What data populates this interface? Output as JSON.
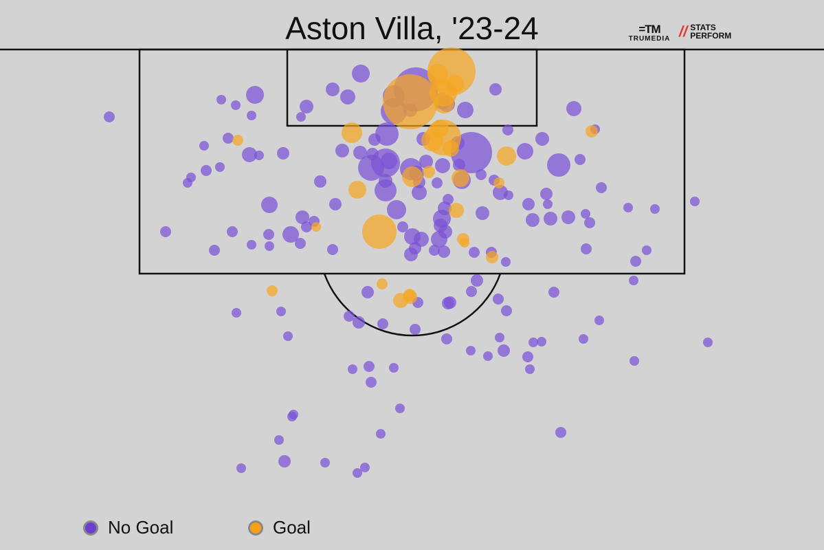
{
  "title": "Aston Villa, '23-24",
  "logos": {
    "trumedia_mark": "=TM",
    "trumedia": "TRUMEDIA",
    "stats": "STATS",
    "perform": "PERFORM"
  },
  "legend": [
    {
      "label": "No Goal",
      "color": "#6a3fd0"
    },
    {
      "label": "Goal",
      "color": "#f7a11a"
    }
  ],
  "colors": {
    "no_goal": "#7a52d6",
    "goal": "#f5a623",
    "background": "#d3d3d3",
    "lines": "#111111"
  },
  "chart_data": {
    "type": "scatter",
    "title": "Aston Villa, '23-24",
    "description_size": "bubble size = chance quality",
    "series": [
      {
        "name": "No Goal",
        "color": "#7a52d6",
        "points": [
          [
            159,
            170,
            8
          ],
          [
            322,
            145,
            7
          ],
          [
            343,
            153,
            7
          ],
          [
            371,
            138,
            13
          ],
          [
            366,
            168,
            7
          ],
          [
            297,
            212,
            7
          ],
          [
            332,
            201,
            8
          ],
          [
            363,
            225,
            11
          ],
          [
            377,
            226,
            7
          ],
          [
            412,
            223,
            9
          ],
          [
            300,
            248,
            8
          ],
          [
            320,
            243,
            7
          ],
          [
            278,
            258,
            7
          ],
          [
            273,
            266,
            7
          ],
          [
            241,
            337,
            8
          ],
          [
            312,
            364,
            8
          ],
          [
            338,
            337,
            8
          ],
          [
            366,
            356,
            7
          ],
          [
            391,
            341,
            8
          ],
          [
            392,
            358,
            7
          ],
          [
            392,
            298,
            12
          ],
          [
            423,
            341,
            12
          ],
          [
            437,
            354,
            8
          ],
          [
            440,
            316,
            10
          ],
          [
            446,
            330,
            8
          ],
          [
            457,
            322,
            8
          ],
          [
            484,
            363,
            8
          ],
          [
            466,
            264,
            9
          ],
          [
            488,
            297,
            9
          ],
          [
            438,
            170,
            7
          ],
          [
            446,
            155,
            10
          ],
          [
            484,
            130,
            10
          ],
          [
            506,
            141,
            11
          ],
          [
            525,
            107,
            13
          ],
          [
            573,
            140,
            16
          ],
          [
            605,
            130,
            32
          ],
          [
            573,
            162,
            19
          ],
          [
            597,
            160,
            10
          ],
          [
            677,
            160,
            12
          ],
          [
            721,
            130,
            9
          ],
          [
            739,
            189,
            8
          ],
          [
            789,
            202,
            10
          ],
          [
            764,
            220,
            12
          ],
          [
            835,
            158,
            11
          ],
          [
            866,
            188,
            7
          ],
          [
            813,
            240,
            17
          ],
          [
            844,
            232,
            8
          ],
          [
            875,
            273,
            8
          ],
          [
            728,
            280,
            11
          ],
          [
            740,
            284,
            7
          ],
          [
            702,
            310,
            10
          ],
          [
            769,
            297,
            9
          ],
          [
            795,
            282,
            9
          ],
          [
            797,
            297,
            7
          ],
          [
            775,
            320,
            10
          ],
          [
            801,
            318,
            10
          ],
          [
            827,
            316,
            10
          ],
          [
            852,
            311,
            7
          ],
          [
            858,
            324,
            8
          ],
          [
            853,
            362,
            8
          ],
          [
            914,
            302,
            7
          ],
          [
            953,
            304,
            7
          ],
          [
            1011,
            293,
            7
          ],
          [
            941,
            364,
            7
          ],
          [
            925,
            380,
            8
          ],
          [
            922,
            408,
            7
          ],
          [
            872,
            466,
            7
          ],
          [
            849,
            493,
            7
          ],
          [
            923,
            525,
            7
          ],
          [
            1030,
            498,
            7
          ],
          [
            816,
            629,
            8
          ],
          [
            806,
            425,
            8
          ],
          [
            725,
            435,
            8
          ],
          [
            737,
            452,
            8
          ],
          [
            694,
            408,
            9
          ],
          [
            686,
            424,
            8
          ],
          [
            655,
            440,
            9
          ],
          [
            652,
            441,
            9
          ],
          [
            727,
            491,
            7
          ],
          [
            788,
            497,
            7
          ],
          [
            776,
            498,
            7
          ],
          [
            768,
            519,
            8
          ],
          [
            771,
            537,
            7
          ],
          [
            733,
            510,
            9
          ],
          [
            710,
            518,
            7
          ],
          [
            685,
            510,
            7
          ],
          [
            650,
            493,
            8
          ],
          [
            604,
            479,
            8
          ],
          [
            608,
            440,
            8
          ],
          [
            557,
            471,
            8
          ],
          [
            522,
            469,
            9
          ],
          [
            508,
            460,
            8
          ],
          [
            535,
            425,
            9
          ],
          [
            513,
            537,
            7
          ],
          [
            537,
            533,
            8
          ],
          [
            540,
            556,
            8
          ],
          [
            573,
            535,
            7
          ],
          [
            582,
            594,
            7
          ],
          [
            554,
            631,
            7
          ],
          [
            520,
            688,
            7
          ],
          [
            531,
            680,
            7
          ],
          [
            473,
            673,
            7
          ],
          [
            414,
            671,
            9
          ],
          [
            351,
            681,
            7
          ],
          [
            406,
            640,
            7
          ],
          [
            427,
            603,
            7
          ],
          [
            425,
            606,
            7
          ],
          [
            419,
            489,
            7
          ],
          [
            409,
            453,
            7
          ],
          [
            344,
            455,
            7
          ],
          [
            736,
            381,
            7
          ],
          [
            715,
            367,
            8
          ],
          [
            690,
            367,
            8
          ],
          [
            646,
            366,
            9
          ],
          [
            632,
            364,
            8
          ],
          [
            598,
            370,
            10
          ],
          [
            604,
            361,
            9
          ],
          [
            600,
            344,
            12
          ],
          [
            613,
            348,
            11
          ],
          [
            639,
            348,
            12
          ],
          [
            648,
            337,
            10
          ],
          [
            643,
            318,
            13
          ],
          [
            641,
            328,
            10
          ],
          [
            647,
            303,
            10
          ],
          [
            652,
            290,
            8
          ],
          [
            586,
            330,
            8
          ],
          [
            577,
            305,
            14
          ],
          [
            561,
            277,
            16
          ],
          [
            561,
            263,
            10
          ],
          [
            540,
            244,
            19
          ],
          [
            561,
            237,
            21
          ],
          [
            566,
            234,
            12
          ],
          [
            524,
            222,
            10
          ],
          [
            498,
            219,
            10
          ],
          [
            542,
            224,
            9
          ],
          [
            545,
            203,
            9
          ],
          [
            563,
            195,
            17
          ],
          [
            598,
            246,
            16
          ],
          [
            606,
            252,
            11
          ],
          [
            620,
            235,
            10
          ],
          [
            610,
            280,
            11
          ],
          [
            610,
            265,
            9
          ],
          [
            636,
            266,
            8
          ],
          [
            644,
            241,
            11
          ],
          [
            616,
            202,
            10
          ],
          [
            666,
            208,
            10
          ],
          [
            686,
            222,
            30
          ],
          [
            672,
            262,
            13
          ],
          [
            700,
            254,
            8
          ],
          [
            719,
            262,
            8
          ],
          [
            668,
            240,
            9
          ],
          [
            650,
            151,
            12
          ],
          [
            643,
            147,
            12
          ]
        ]
      },
      {
        "name": "Goal",
        "color": "#f5a623",
        "points": [
          [
            657,
            104,
            35
          ],
          [
            662,
            122,
            13
          ],
          [
            637,
            108,
            15
          ],
          [
            645,
            135,
            20
          ],
          [
            646,
            150,
            15
          ],
          [
            597,
            148,
            40
          ],
          [
            645,
            200,
            26
          ],
          [
            640,
            187,
            13
          ],
          [
            629,
            204,
            16
          ],
          [
            656,
            216,
            12
          ],
          [
            512,
            193,
            15
          ],
          [
            737,
            227,
            14
          ],
          [
            726,
            266,
            8
          ],
          [
            670,
            259,
            13
          ],
          [
            664,
            306,
            11
          ],
          [
            520,
            276,
            13
          ],
          [
            552,
            337,
            25
          ],
          [
            600,
            257,
            15
          ],
          [
            624,
            250,
            9
          ],
          [
            460,
            330,
            7
          ],
          [
            346,
            204,
            8
          ],
          [
            861,
            191,
            9
          ],
          [
            674,
            348,
            9
          ],
          [
            676,
            353,
            7
          ],
          [
            716,
            374,
            9
          ],
          [
            556,
            413,
            8
          ],
          [
            583,
            437,
            11
          ],
          [
            597,
            432,
            10
          ],
          [
            596,
            429,
            9
          ],
          [
            396,
            423,
            8
          ]
        ]
      }
    ]
  }
}
